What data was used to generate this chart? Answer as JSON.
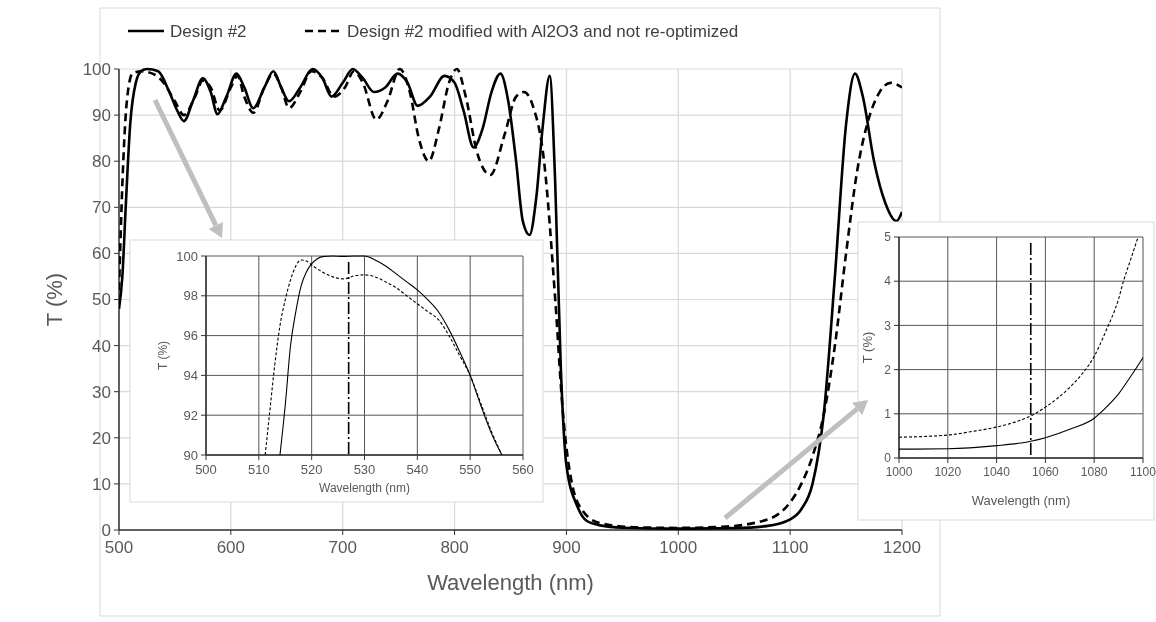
{
  "chart_data": [
    {
      "type": "line",
      "xlabel": "Wavelength (nm)",
      "ylabel": "T (%)",
      "xlim": [
        500,
        1200
      ],
      "ylim": [
        0,
        100
      ],
      "xticks": [
        500,
        600,
        700,
        800,
        900,
        1000,
        1100,
        1200
      ],
      "yticks": [
        0,
        10,
        20,
        30,
        40,
        50,
        60,
        70,
        80,
        90,
        100
      ],
      "grid": true,
      "legend": "top",
      "series": [
        {
          "name": "Design #2",
          "color": "#000000",
          "line_style": "solid",
          "x": [
            500,
            503,
            506,
            510,
            515,
            520,
            525,
            535,
            545,
            552,
            558,
            566,
            575,
            582,
            588,
            596,
            605,
            612,
            620,
            630,
            638,
            645,
            652,
            662,
            673,
            682,
            690,
            700,
            709,
            718,
            728,
            738,
            749,
            758,
            767,
            778,
            791,
            800,
            808,
            817,
            825,
            833,
            841,
            848,
            855,
            861,
            867,
            873,
            879,
            885,
            890,
            895,
            900,
            910,
            918,
            930,
            950,
            1000,
            1050,
            1080,
            1100,
            1110,
            1120,
            1130,
            1140,
            1150,
            1158,
            1165,
            1175,
            1185,
            1195,
            1200
          ],
          "values": [
            48,
            55,
            70,
            88,
            97,
            99.6,
            100,
            99.5,
            95,
            91,
            88.7,
            93,
            98,
            95,
            90.2,
            94,
            99,
            96,
            91.5,
            96,
            99.5,
            96,
            93,
            96,
            100,
            98,
            94,
            97,
            100,
            98,
            95,
            96,
            99,
            97,
            92,
            94,
            98.5,
            97,
            91,
            83,
            87,
            95,
            99,
            93,
            80,
            67,
            64,
            72,
            88,
            98.5,
            75,
            35,
            14,
            5,
            2,
            1,
            0.5,
            0.3,
            0.4,
            0.9,
            2.3,
            4.5,
            10,
            25,
            55,
            88,
            99,
            94,
            80,
            71,
            67,
            69
          ]
        },
        {
          "name": "Design #2 modified with Al2O3 and not re-optimized",
          "color": "#000000",
          "line_style": "dashed",
          "x": [
            500,
            503,
            507,
            512,
            520,
            530,
            540,
            550,
            558,
            568,
            575,
            582,
            590,
            600,
            606,
            612,
            620,
            630,
            638,
            645,
            652,
            662,
            672,
            682,
            692,
            702,
            710,
            718,
            730,
            740,
            751,
            760,
            768,
            777,
            786,
            795,
            802,
            810,
            820,
            832,
            845,
            855,
            862,
            870,
            880,
            890,
            897,
            905,
            915,
            930,
            960,
            1000,
            1040,
            1080,
            1100,
            1110,
            1120,
            1130,
            1140,
            1150,
            1160,
            1170,
            1180,
            1190,
            1200
          ],
          "values": [
            52,
            75,
            93,
            99,
            99.5,
            99,
            97,
            93,
            90,
            94,
            97.5,
            96,
            91,
            96,
            98.5,
            94,
            90.5,
            96,
            99,
            96,
            91.5,
            95,
            99.5,
            98,
            94,
            96,
            99.5,
            97,
            89,
            93,
            100,
            95,
            85,
            80,
            87,
            97,
            100,
            94,
            82,
            77,
            86,
            94,
            95,
            92,
            80,
            50,
            25,
            10,
            4,
            1.5,
            0.6,
            0.45,
            0.7,
            2.3,
            6,
            10,
            16,
            25,
            40,
            60,
            78,
            89,
            95,
            97,
            96
          ]
        }
      ]
    },
    {
      "type": "line",
      "xlabel": "Wavelength (nm)",
      "ylabel": "T (%)",
      "xlim": [
        500,
        560
      ],
      "ylim": [
        90,
        100
      ],
      "xticks": [
        500,
        510,
        520,
        530,
        540,
        550,
        560
      ],
      "yticks": [
        90,
        92,
        94,
        96,
        98,
        100
      ],
      "grid": true,
      "ref_lines": [
        {
          "axis": "x",
          "value": 527,
          "line_style": "dashed"
        }
      ],
      "series": [
        {
          "color": "#000000",
          "line_style": "solid",
          "x": [
            514,
            515,
            516,
            517,
            518,
            519,
            520,
            521,
            522,
            524,
            526,
            528,
            530,
            532,
            534,
            536,
            538,
            540,
            542,
            544,
            546,
            548,
            550,
            552,
            554,
            556
          ],
          "values": [
            90,
            92.5,
            95.5,
            97.2,
            98.5,
            99.2,
            99.6,
            99.85,
            99.97,
            100,
            99.98,
            100,
            100,
            99.8,
            99.5,
            99.1,
            98.7,
            98.3,
            97.8,
            97.2,
            96.3,
            95.2,
            94,
            92.5,
            91.1,
            90
          ]
        },
        {
          "color": "#000000",
          "line_style": "dashed",
          "x": [
            511.2,
            512,
            513,
            514,
            515,
            516,
            517,
            518,
            519,
            520,
            522,
            524,
            526,
            527,
            528,
            530,
            532,
            534,
            536,
            538,
            540,
            542,
            544,
            546,
            548,
            550,
            552,
            554,
            556
          ],
          "values": [
            90,
            92,
            94.5,
            96.5,
            97.8,
            98.8,
            99.5,
            99.8,
            99.75,
            99.55,
            99.2,
            98.95,
            98.85,
            98.9,
            99,
            99.05,
            98.95,
            98.7,
            98.4,
            98,
            97.6,
            97.2,
            96.8,
            96,
            95,
            94,
            92.6,
            91.2,
            90
          ]
        }
      ]
    },
    {
      "type": "line",
      "xlabel": "Wavelength (nm)",
      "ylabel": "T (%)",
      "xlim": [
        1000,
        1100
      ],
      "ylim": [
        0,
        5
      ],
      "xticks": [
        1000,
        1020,
        1040,
        1060,
        1080,
        1100
      ],
      "yticks": [
        0,
        1,
        2,
        3,
        4,
        5
      ],
      "grid": true,
      "ref_lines": [
        {
          "axis": "x",
          "value": 1054,
          "line_style": "dashed"
        }
      ],
      "series": [
        {
          "color": "#000000",
          "line_style": "solid",
          "x": [
            1000,
            1020,
            1040,
            1050,
            1054,
            1060,
            1070,
            1080,
            1085,
            1090,
            1095,
            1100
          ],
          "values": [
            0.2,
            0.21,
            0.28,
            0.34,
            0.38,
            0.46,
            0.65,
            0.9,
            1.15,
            1.45,
            1.85,
            2.27
          ]
        },
        {
          "color": "#000000",
          "line_style": "dashed",
          "x": [
            1000,
            1020,
            1030,
            1040,
            1050,
            1054,
            1060,
            1070,
            1075,
            1080,
            1085,
            1090,
            1092,
            1095,
            1098
          ],
          "values": [
            0.47,
            0.52,
            0.6,
            0.7,
            0.86,
            0.95,
            1.15,
            1.6,
            1.9,
            2.3,
            2.9,
            3.6,
            4.0,
            4.5,
            5.0
          ]
        }
      ]
    }
  ]
}
